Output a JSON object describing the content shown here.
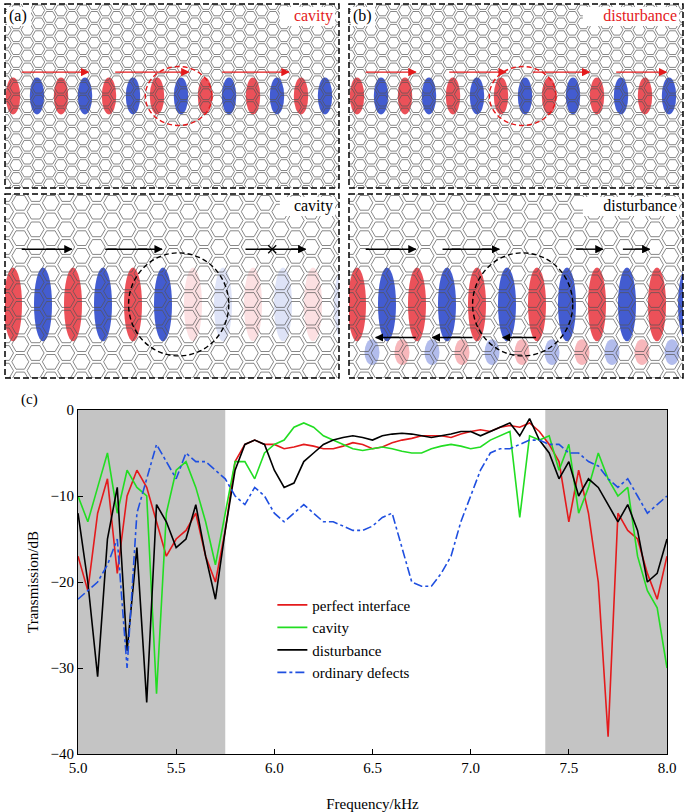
{
  "panels": [
    {
      "label": "(a)",
      "title": "cavity",
      "title_color": "#e41a1c"
    },
    {
      "label": "(b)",
      "title": "disturbance",
      "title_color": "#e41a1c"
    },
    {
      "title": "cavity",
      "title_color": "#000000"
    },
    {
      "title": "disturbance",
      "title_color": "#000000"
    }
  ],
  "chart_data": {
    "type": "line",
    "panel_label": "(c)",
    "x_label": "Frequency/kHz",
    "y_label": "Transmission/dB",
    "xlim": [
      5,
      8
    ],
    "ylim": [
      -40,
      0
    ],
    "xticks": [
      {
        "value": 5,
        "label": "5.0"
      },
      {
        "value": 5.5,
        "label": "5.5"
      },
      {
        "value": 6,
        "label": "6.0"
      },
      {
        "value": 6.5,
        "label": "6.5"
      },
      {
        "value": 7,
        "label": "7.0"
      },
      {
        "value": 7.5,
        "label": "7.5"
      },
      {
        "value": 8,
        "label": "8.0"
      }
    ],
    "yticks": [
      0,
      {
        "value": -10,
        "label": "−10"
      },
      {
        "value": -20,
        "label": "−20"
      },
      {
        "value": -30,
        "label": "−30"
      },
      {
        "value": -40,
        "label": "−40"
      }
    ],
    "shaded_ranges": [
      [
        5.0,
        5.75
      ],
      [
        7.38,
        8.0
      ]
    ],
    "legend": "lower center",
    "grid": false,
    "x": [
      5.0,
      5.05,
      5.1,
      5.15,
      5.2,
      5.25,
      5.3,
      5.35,
      5.4,
      5.45,
      5.5,
      5.55,
      5.6,
      5.65,
      5.7,
      5.75,
      5.8,
      5.85,
      5.9,
      5.95,
      6.0,
      6.05,
      6.1,
      6.15,
      6.2,
      6.25,
      6.3,
      6.35,
      6.4,
      6.45,
      6.5,
      6.55,
      6.6,
      6.65,
      6.7,
      6.75,
      6.8,
      6.85,
      6.9,
      6.95,
      7.0,
      7.05,
      7.1,
      7.15,
      7.2,
      7.25,
      7.3,
      7.35,
      7.4,
      7.45,
      7.5,
      7.55,
      7.6,
      7.65,
      7.7,
      7.75,
      7.8,
      7.85,
      7.9,
      7.95,
      8.0
    ],
    "series": [
      {
        "name": "perfect interface",
        "color": "#e41a1c",
        "line_style": "solid",
        "values": [
          -17,
          -21,
          -12,
          -8,
          -19,
          -10,
          -7,
          -9,
          -13,
          -17,
          -15,
          -14,
          -12,
          -17,
          -20,
          -14,
          -6,
          -4,
          -3.5,
          -4,
          -4,
          -4.5,
          -4.3,
          -4,
          -4.2,
          -4.5,
          -4.5,
          -4.2,
          -3.8,
          -4,
          -4.5,
          -4.3,
          -3.8,
          -3.5,
          -3.3,
          -3,
          -3,
          -3,
          -3.2,
          -2.8,
          -2.5,
          -2.3,
          -2.5,
          -2,
          -1.8,
          -2,
          -1.5,
          -2.5,
          -4,
          -6,
          -13,
          -7,
          -12,
          -20,
          -38,
          -12,
          -14,
          -15,
          -19,
          -22,
          -17
        ]
      },
      {
        "name": "cavity",
        "color": "#22dd22",
        "line_style": "solid",
        "values": [
          -10,
          -13,
          -9,
          -5,
          -12,
          -7,
          -9,
          -10,
          -33,
          -12,
          -7,
          -6,
          -9,
          -13,
          -18,
          -12,
          -6,
          -6,
          -8,
          -5,
          -4,
          -3.5,
          -2,
          -1.5,
          -2,
          -3,
          -3.5,
          -4,
          -4.5,
          -4.7,
          -4.5,
          -4.3,
          -4.5,
          -4.8,
          -5,
          -5,
          -4.5,
          -4.2,
          -4,
          -4.2,
          -4.5,
          -4.3,
          -3.5,
          -3,
          -2.5,
          -12.5,
          -3,
          -3.5,
          -3,
          -7,
          -4,
          -12,
          -9,
          -5,
          -8,
          -10,
          -9,
          -17,
          -21,
          -23,
          -30
        ]
      },
      {
        "name": "disturbance",
        "color": "#000000",
        "line_style": "solid",
        "values": [
          -12,
          -20,
          -31,
          -15,
          -9,
          -28,
          -16,
          -34,
          -11,
          -13,
          -16,
          -15,
          -11,
          -17,
          -22,
          -14,
          -7,
          -4,
          -3.5,
          -4,
          -7,
          -9,
          -8.5,
          -6,
          -5,
          -4,
          -3.5,
          -3.2,
          -3,
          -3.2,
          -3.5,
          -3,
          -2.8,
          -2.7,
          -2.8,
          -3,
          -3.2,
          -3,
          -2.8,
          -2.5,
          -2.5,
          -3,
          -2.5,
          -2,
          -1.5,
          -3,
          -1,
          -3.5,
          -5,
          -8,
          -6,
          -10,
          -8,
          -9,
          -11,
          -13,
          -11,
          -14,
          -20,
          -19,
          -15
        ]
      },
      {
        "name": "ordinary defects",
        "color": "#1f4fe0",
        "line_style": "dashdot",
        "values": [
          -22,
          -21,
          -20,
          -18,
          -15,
          -30,
          -12,
          -8,
          -4,
          -6,
          -8,
          -5,
          -6,
          -6,
          -7,
          -8,
          -10,
          -11,
          -9,
          -10,
          -12,
          -13,
          -12,
          -11,
          -12,
          -13,
          -13,
          -13.5,
          -14,
          -14,
          -13.5,
          -12.5,
          -12,
          -16,
          -20,
          -20.5,
          -20.5,
          -19,
          -17,
          -13,
          -10,
          -7,
          -5,
          -4.5,
          -4.5,
          -4,
          -3.5,
          -3.5,
          -4,
          -4,
          -5,
          -5,
          -6,
          -6.5,
          -8,
          -9,
          -8,
          -10,
          -12,
          -11,
          -10
        ]
      }
    ]
  }
}
